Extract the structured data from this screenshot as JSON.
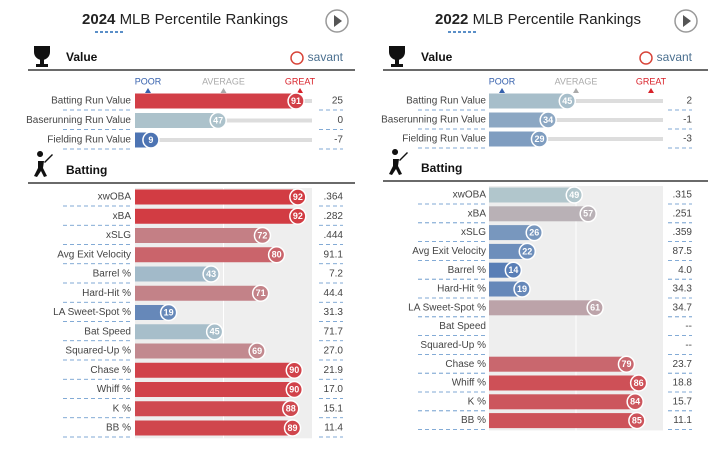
{
  "panels": [
    {
      "year": "2024",
      "title": "MLB Percentile Rankings",
      "brand": "savant",
      "scale_labels": [
        "POOR",
        "AVERAGE",
        "GREAT"
      ],
      "sections": [
        {
          "name": "Value",
          "rows": [
            {
              "label": "Batting Run Value",
              "percentile": 91,
              "value": "25"
            },
            {
              "label": "Baserunning Run Value",
              "percentile": 47,
              "value": "0"
            },
            {
              "label": "Fielding Run Value",
              "percentile": 9,
              "value": "-7"
            }
          ]
        },
        {
          "name": "Batting",
          "rows": [
            {
              "label": "xwOBA",
              "percentile": 92,
              "value": ".364"
            },
            {
              "label": "xBA",
              "percentile": 92,
              "value": ".282"
            },
            {
              "label": "xSLG",
              "percentile": 72,
              "value": ".444"
            },
            {
              "label": "Avg Exit Velocity",
              "percentile": 80,
              "value": "91.1"
            },
            {
              "label": "Barrel %",
              "percentile": 43,
              "value": "7.2"
            },
            {
              "label": "Hard-Hit %",
              "percentile": 71,
              "value": "44.4"
            },
            {
              "label": "LA Sweet-Spot %",
              "percentile": 19,
              "value": "31.3"
            },
            {
              "label": "Bat Speed",
              "percentile": 45,
              "value": "71.7"
            },
            {
              "label": "Squared-Up %",
              "percentile": 69,
              "value": "27.0"
            },
            {
              "label": "Chase %",
              "percentile": 90,
              "value": "21.9"
            },
            {
              "label": "Whiff %",
              "percentile": 90,
              "value": "17.0"
            },
            {
              "label": "K %",
              "percentile": 88,
              "value": "15.1"
            },
            {
              "label": "BB %",
              "percentile": 89,
              "value": "11.4"
            }
          ]
        }
      ]
    },
    {
      "year": "2022",
      "title": "MLB Percentile Rankings",
      "brand": "savant",
      "scale_labels": [
        "POOR",
        "AVERAGE",
        "GREAT"
      ],
      "sections": [
        {
          "name": "Value",
          "rows": [
            {
              "label": "Batting Run Value",
              "percentile": 45,
              "value": "2"
            },
            {
              "label": "Baserunning Run Value",
              "percentile": 34,
              "value": "-1"
            },
            {
              "label": "Fielding Run Value",
              "percentile": 29,
              "value": "-3"
            }
          ]
        },
        {
          "name": "Batting",
          "rows": [
            {
              "label": "xwOBA",
              "percentile": 49,
              "value": ".315"
            },
            {
              "label": "xBA",
              "percentile": 57,
              "value": ".251"
            },
            {
              "label": "xSLG",
              "percentile": 26,
              "value": ".359"
            },
            {
              "label": "Avg Exit Velocity",
              "percentile": 22,
              "value": "87.5"
            },
            {
              "label": "Barrel %",
              "percentile": 14,
              "value": "4.0"
            },
            {
              "label": "Hard-Hit %",
              "percentile": 19,
              "value": "34.3"
            },
            {
              "label": "LA Sweet-Spot %",
              "percentile": 61,
              "value": "34.7"
            },
            {
              "label": "Bat Speed",
              "percentile": null,
              "value": "--"
            },
            {
              "label": "Squared-Up %",
              "percentile": null,
              "value": "--"
            },
            {
              "label": "Chase %",
              "percentile": 79,
              "value": "23.7"
            },
            {
              "label": "Whiff %",
              "percentile": 86,
              "value": "18.8"
            },
            {
              "label": "K %",
              "percentile": 84,
              "value": "15.7"
            },
            {
              "label": "BB %",
              "percentile": 85,
              "value": "11.1"
            }
          ]
        }
      ]
    }
  ]
}
